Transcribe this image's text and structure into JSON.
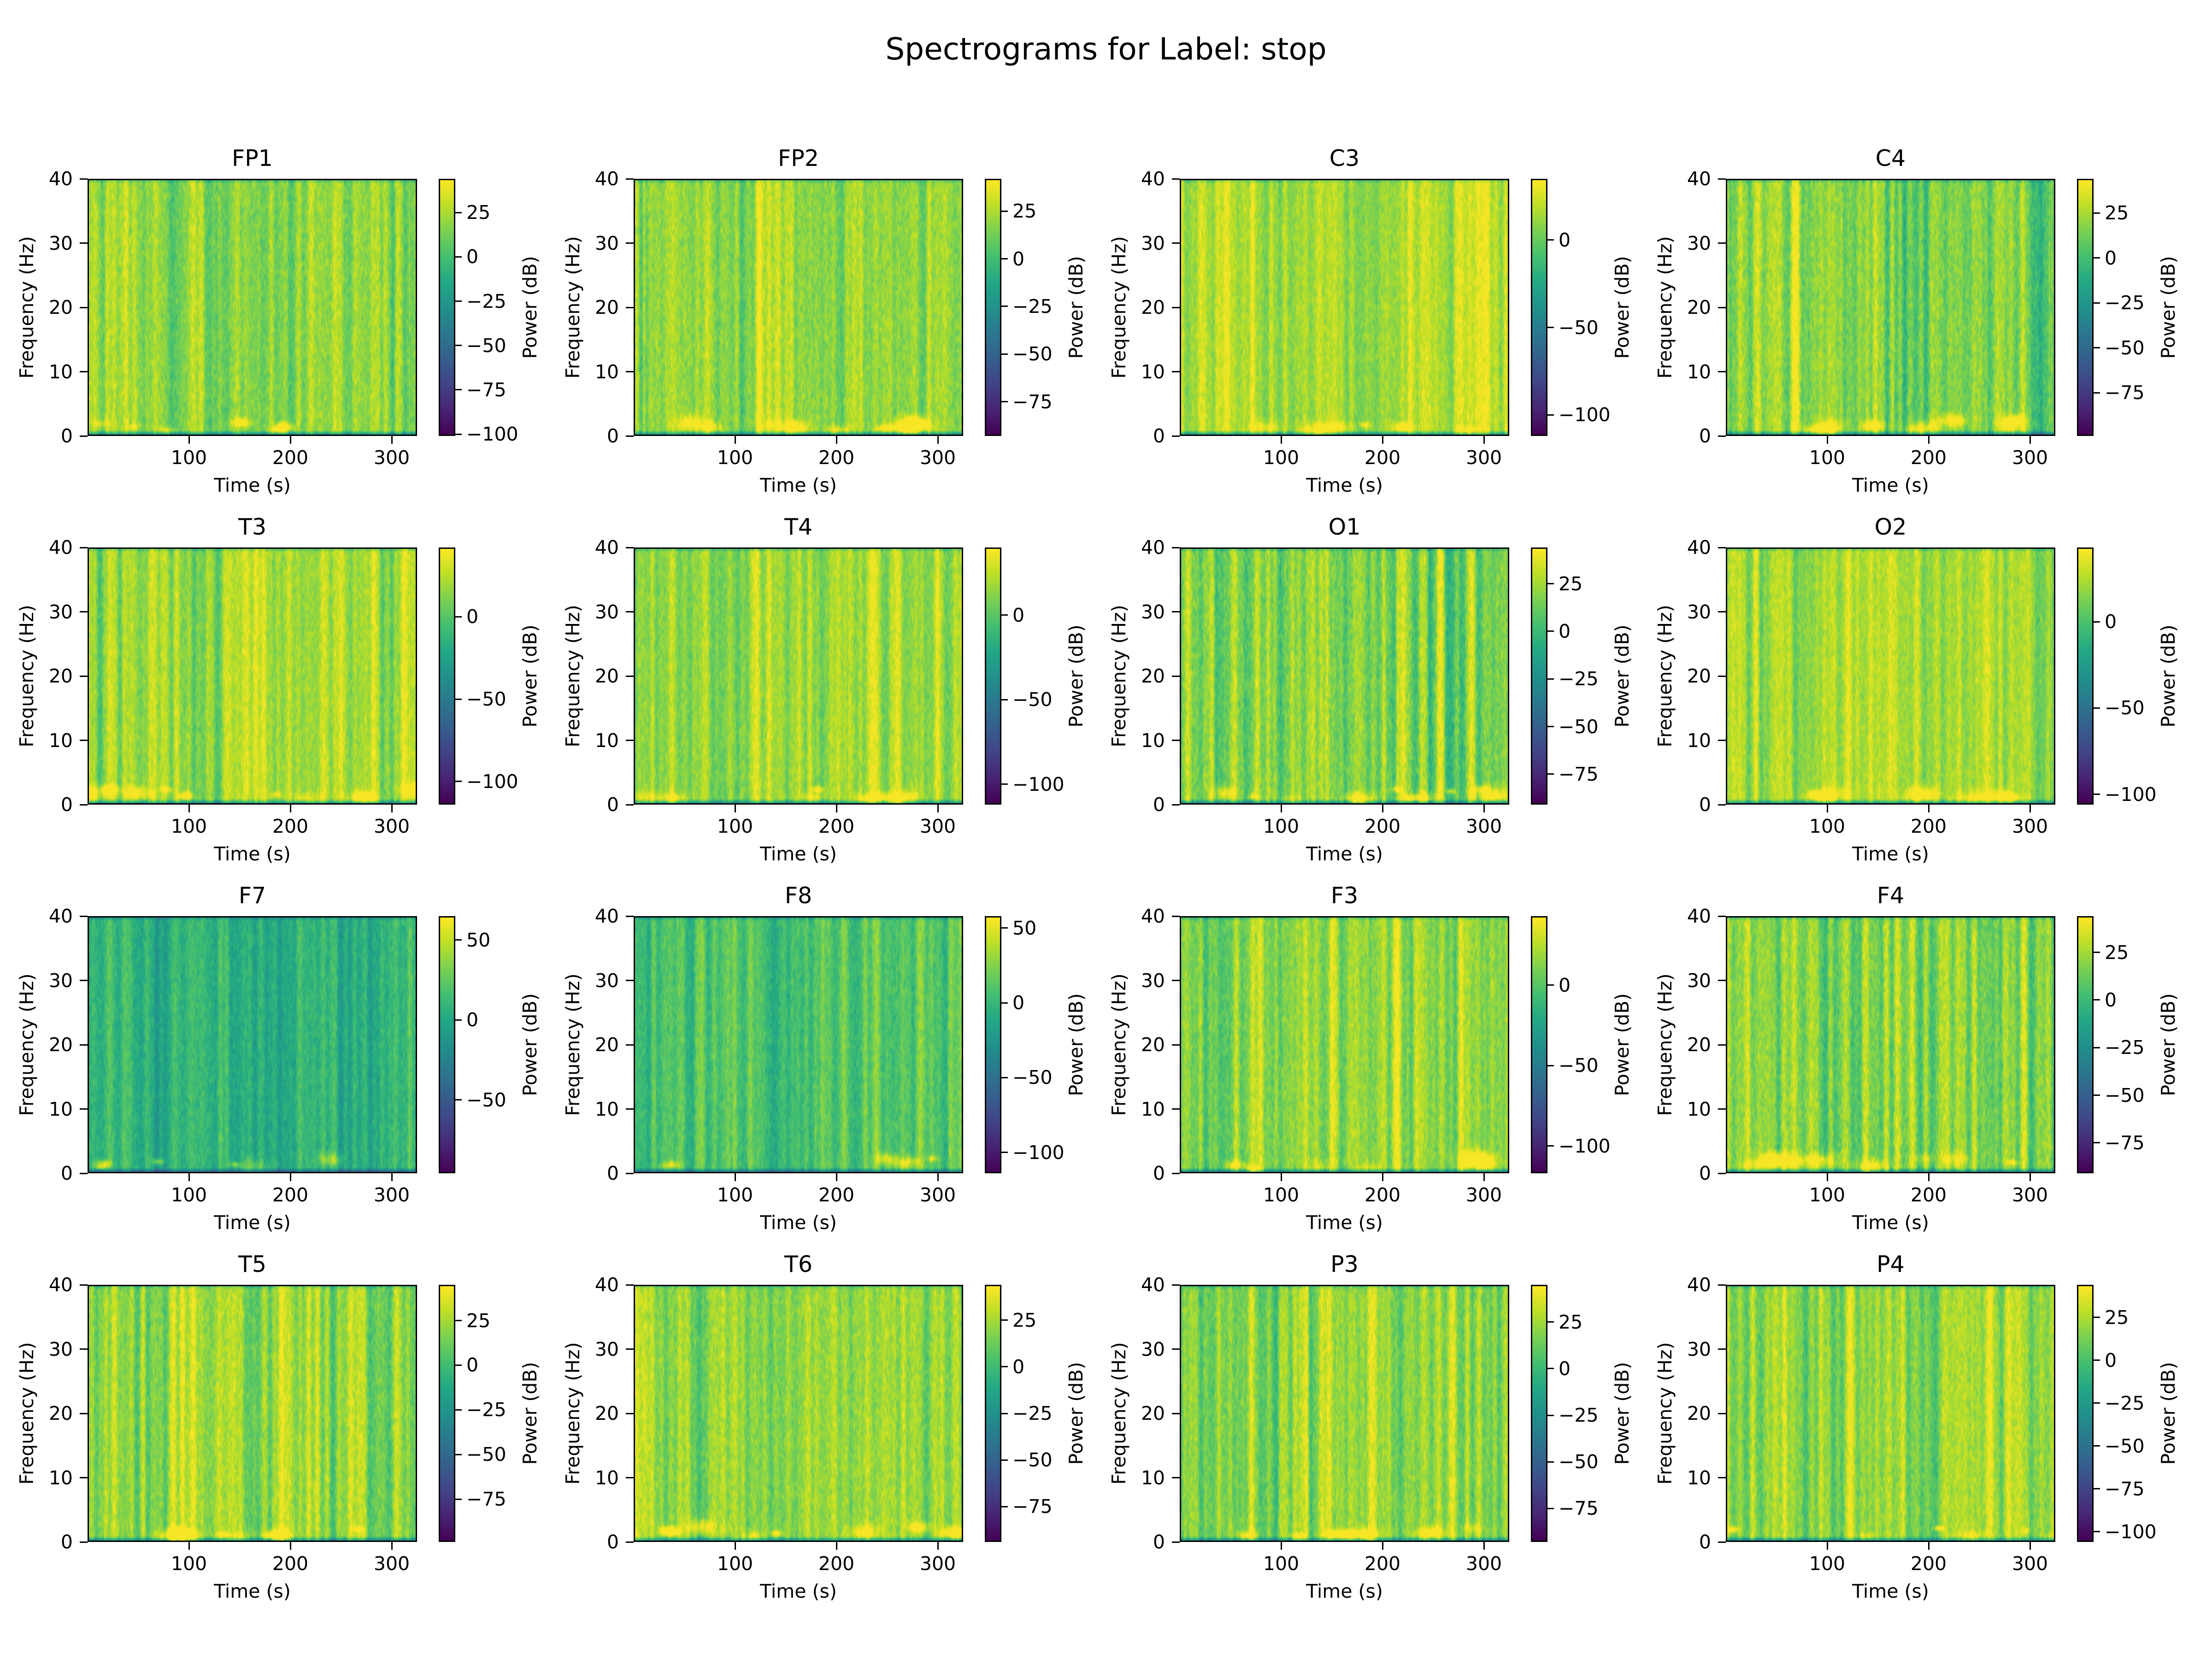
{
  "suptitle": "Spectrograms for Label: stop",
  "axis_labels": {
    "x": "Time (s)",
    "y": "Frequency (Hz)",
    "colorbar": "Power (dB)"
  },
  "x_ticks": [
    100,
    200,
    300
  ],
  "y_ticks": [
    0,
    10,
    20,
    30,
    40
  ],
  "x_range": [
    0,
    325
  ],
  "y_range": [
    0,
    40
  ],
  "colormap": {
    "name": "viridis",
    "stops": [
      "#440154",
      "#482475",
      "#414487",
      "#355f8d",
      "#2a788e",
      "#21918c",
      "#22a884",
      "#44bf70",
      "#7ad151",
      "#bddf26",
      "#fde725"
    ]
  },
  "chart_data": [
    {
      "type": "heatmap",
      "channel": "FP1",
      "title": "FP1",
      "xlabel": "Time (s)",
      "ylabel": "Frequency (Hz)",
      "x_range": [
        0,
        325
      ],
      "y_range": [
        0,
        40
      ],
      "colorbar": {
        "label": "Power (dB)",
        "ticks": [
          25,
          0,
          -25,
          -50,
          -75,
          -100
        ],
        "vmax": 44,
        "vmin": -101
      },
      "texture": {
        "base": 0.835,
        "stripe": 0.38,
        "noise": 0.1,
        "seed": 11
      }
    },
    {
      "type": "heatmap",
      "channel": "FP2",
      "title": "FP2",
      "xlabel": "Time (s)",
      "ylabel": "Frequency (Hz)",
      "x_range": [
        0,
        325
      ],
      "y_range": [
        0,
        40
      ],
      "colorbar": {
        "label": "Power (dB)",
        "ticks": [
          25,
          0,
          -25,
          -50,
          -75
        ],
        "vmax": 42,
        "vmin": -93
      },
      "texture": {
        "base": 0.84,
        "stripe": 0.36,
        "noise": 0.1,
        "seed": 23
      }
    },
    {
      "type": "heatmap",
      "channel": "C3",
      "title": "C3",
      "xlabel": "Time (s)",
      "ylabel": "Frequency (Hz)",
      "x_range": [
        0,
        325
      ],
      "y_range": [
        0,
        40
      ],
      "colorbar": {
        "label": "Power (dB)",
        "ticks": [
          0,
          -50,
          -100
        ],
        "vmax": 35,
        "vmin": -112
      },
      "texture": {
        "base": 0.87,
        "stripe": 0.34,
        "noise": 0.09,
        "seed": 37
      }
    },
    {
      "type": "heatmap",
      "channel": "C4",
      "title": "C4",
      "xlabel": "Time (s)",
      "ylabel": "Frequency (Hz)",
      "x_range": [
        0,
        325
      ],
      "y_range": [
        0,
        40
      ],
      "colorbar": {
        "label": "Power (dB)",
        "ticks": [
          25,
          0,
          -25,
          -50,
          -75
        ],
        "vmax": 44,
        "vmin": -99
      },
      "texture": {
        "base": 0.815,
        "stripe": 0.44,
        "noise": 0.11,
        "seed": 41
      }
    },
    {
      "type": "heatmap",
      "channel": "T3",
      "title": "T3",
      "xlabel": "Time (s)",
      "ylabel": "Frequency (Hz)",
      "x_range": [
        0,
        325
      ],
      "y_range": [
        0,
        40
      ],
      "colorbar": {
        "label": "Power (dB)",
        "ticks": [
          0,
          -50,
          -100
        ],
        "vmax": 42,
        "vmin": -114
      },
      "texture": {
        "base": 0.85,
        "stripe": 0.36,
        "noise": 0.09,
        "seed": 53
      }
    },
    {
      "type": "heatmap",
      "channel": "T4",
      "title": "T4",
      "xlabel": "Time (s)",
      "ylabel": "Frequency (Hz)",
      "x_range": [
        0,
        325
      ],
      "y_range": [
        0,
        40
      ],
      "colorbar": {
        "label": "Power (dB)",
        "ticks": [
          0,
          -50,
          -100
        ],
        "vmax": 40,
        "vmin": -112
      },
      "texture": {
        "base": 0.85,
        "stripe": 0.34,
        "noise": 0.09,
        "seed": 61
      }
    },
    {
      "type": "heatmap",
      "channel": "O1",
      "title": "O1",
      "xlabel": "Time (s)",
      "ylabel": "Frequency (Hz)",
      "x_range": [
        0,
        325
      ],
      "y_range": [
        0,
        40
      ],
      "colorbar": {
        "label": "Power (dB)",
        "ticks": [
          25,
          0,
          -25,
          -50,
          -75
        ],
        "vmax": 44,
        "vmin": -91
      },
      "texture": {
        "base": 0.805,
        "stripe": 0.52,
        "noise": 0.11,
        "seed": 71
      }
    },
    {
      "type": "heatmap",
      "channel": "O2",
      "title": "O2",
      "xlabel": "Time (s)",
      "ylabel": "Frequency (Hz)",
      "x_range": [
        0,
        325
      ],
      "y_range": [
        0,
        40
      ],
      "colorbar": {
        "label": "Power (dB)",
        "ticks": [
          0,
          -50,
          -100
        ],
        "vmax": 43,
        "vmin": -106
      },
      "texture": {
        "base": 0.85,
        "stripe": 0.36,
        "noise": 0.09,
        "seed": 83
      }
    },
    {
      "type": "heatmap",
      "channel": "F7",
      "title": "F7",
      "xlabel": "Time (s)",
      "ylabel": "Frequency (Hz)",
      "x_range": [
        0,
        325
      ],
      "y_range": [
        0,
        40
      ],
      "colorbar": {
        "label": "Power (dB)",
        "ticks": [
          50,
          0,
          -50
        ],
        "vmax": 65,
        "vmin": -96
      },
      "texture": {
        "base": 0.645,
        "stripe": 0.3,
        "noise": 0.09,
        "seed": 97
      }
    },
    {
      "type": "heatmap",
      "channel": "F8",
      "title": "F8",
      "xlabel": "Time (s)",
      "ylabel": "Frequency (Hz)",
      "x_range": [
        0,
        325
      ],
      "y_range": [
        0,
        40
      ],
      "colorbar": {
        "label": "Power (dB)",
        "ticks": [
          50,
          0,
          -50,
          -100
        ],
        "vmax": 58,
        "vmin": -114
      },
      "texture": {
        "base": 0.73,
        "stripe": 0.32,
        "noise": 0.09,
        "seed": 103
      }
    },
    {
      "type": "heatmap",
      "channel": "F3",
      "title": "F3",
      "xlabel": "Time (s)",
      "ylabel": "Frequency (Hz)",
      "x_range": [
        0,
        325
      ],
      "y_range": [
        0,
        40
      ],
      "colorbar": {
        "label": "Power (dB)",
        "ticks": [
          0,
          -50,
          -100
        ],
        "vmax": 43,
        "vmin": -117
      },
      "texture": {
        "base": 0.845,
        "stripe": 0.4,
        "noise": 0.1,
        "seed": 113
      }
    },
    {
      "type": "heatmap",
      "channel": "F4",
      "title": "F4",
      "xlabel": "Time (s)",
      "ylabel": "Frequency (Hz)",
      "x_range": [
        0,
        325
      ],
      "y_range": [
        0,
        40
      ],
      "colorbar": {
        "label": "Power (dB)",
        "ticks": [
          25,
          0,
          -25,
          -50,
          -75
        ],
        "vmax": 44,
        "vmin": -91
      },
      "texture": {
        "base": 0.81,
        "stripe": 0.42,
        "noise": 0.11,
        "seed": 127
      }
    },
    {
      "type": "heatmap",
      "channel": "T5",
      "title": "T5",
      "xlabel": "Time (s)",
      "ylabel": "Frequency (Hz)",
      "x_range": [
        0,
        325
      ],
      "y_range": [
        0,
        40
      ],
      "colorbar": {
        "label": "Power (dB)",
        "ticks": [
          25,
          0,
          -25,
          -50,
          -75
        ],
        "vmax": 45,
        "vmin": -99
      },
      "texture": {
        "base": 0.84,
        "stripe": 0.4,
        "noise": 0.1,
        "seed": 131
      }
    },
    {
      "type": "heatmap",
      "channel": "T6",
      "title": "T6",
      "xlabel": "Time (s)",
      "ylabel": "Frequency (Hz)",
      "x_range": [
        0,
        325
      ],
      "y_range": [
        0,
        40
      ],
      "colorbar": {
        "label": "Power (dB)",
        "ticks": [
          25,
          0,
          -25,
          -50,
          -75
        ],
        "vmax": 44,
        "vmin": -94
      },
      "texture": {
        "base": 0.84,
        "stripe": 0.36,
        "noise": 0.1,
        "seed": 139
      }
    },
    {
      "type": "heatmap",
      "channel": "P3",
      "title": "P3",
      "xlabel": "Time (s)",
      "ylabel": "Frequency (Hz)",
      "x_range": [
        0,
        325
      ],
      "y_range": [
        0,
        40
      ],
      "colorbar": {
        "label": "Power (dB)",
        "ticks": [
          25,
          0,
          -25,
          -50,
          -75
        ],
        "vmax": 45,
        "vmin": -93
      },
      "texture": {
        "base": 0.835,
        "stripe": 0.42,
        "noise": 0.1,
        "seed": 149
      }
    },
    {
      "type": "heatmap",
      "channel": "P4",
      "title": "P4",
      "xlabel": "Time (s)",
      "ylabel": "Frequency (Hz)",
      "x_range": [
        0,
        325
      ],
      "y_range": [
        0,
        40
      ],
      "colorbar": {
        "label": "Power (dB)",
        "ticks": [
          25,
          0,
          -25,
          -50,
          -75,
          -100
        ],
        "vmax": 44,
        "vmin": -106
      },
      "texture": {
        "base": 0.84,
        "stripe": 0.38,
        "noise": 0.1,
        "seed": 157
      }
    }
  ]
}
